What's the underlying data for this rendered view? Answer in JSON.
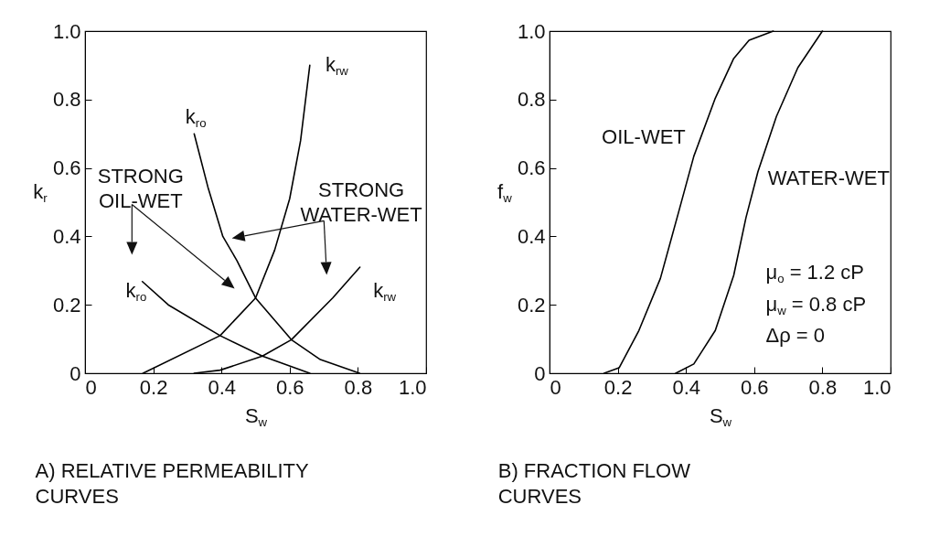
{
  "chart_data": [
    {
      "type": "line",
      "title": "A) RELATIVE PERMEABILITY CURVES",
      "xlabel": "S$_{w}$",
      "ylabel": "k$_{r}$",
      "xlim": [
        0,
        1
      ],
      "ylim": [
        0,
        1
      ],
      "xticks": [
        0,
        0.2,
        0.4,
        0.6,
        0.8,
        {
          "value": 1,
          "label": "1.0"
        }
      ],
      "yticks": [
        0,
        0.2,
        0.4,
        0.6,
        0.8,
        {
          "value": 1,
          "label": "1.0"
        }
      ],
      "grid": false,
      "legend": false,
      "marker": "none",
      "line_style": "solid",
      "annotations": [
        "STRONG OIL-WET",
        "STRONG WATER-WET"
      ],
      "series": [
        {
          "name": "k$_{rw}$",
          "color": "#000000",
          "x": [
            0.17,
            0.396,
            0.5,
            0.556,
            0.6,
            0.632,
            0.659
          ],
          "values": [
            0,
            0.11,
            0.22,
            0.36,
            0.51,
            0.68,
            0.9
          ]
        },
        {
          "name": "k$_{ro}$",
          "color": "#000000",
          "x": [
            0.32,
            0.36,
            0.404,
            0.445,
            0.5,
            0.605,
            0.69,
            0.805
          ],
          "values": [
            0.7,
            0.545,
            0.4,
            0.33,
            0.22,
            0.098,
            0.04,
            0
          ]
        },
        {
          "name": "k$_{rw}$",
          "color": "#000000",
          "x": [
            0.32,
            0.396,
            0.52,
            0.605,
            0.726,
            0.806
          ],
          "values": [
            0,
            0.009,
            0.05,
            0.098,
            0.22,
            0.31
          ]
        },
        {
          "name": "k$_{ro}$",
          "color": "#000000",
          "x": [
            0.168,
            0.244,
            0.396,
            0.52,
            0.659
          ],
          "values": [
            0.268,
            0.2,
            0.11,
            0.05,
            0
          ]
        }
      ]
    },
    {
      "type": "line",
      "title": "B) FRACTION  FLOW CURVES",
      "xlabel": "S$_{w}$",
      "ylabel": "f$_{w}$",
      "xlim": [
        0,
        1
      ],
      "ylim": [
        0,
        1
      ],
      "xticks": [
        0,
        0.2,
        0.4,
        0.6,
        0.8,
        {
          "value": 1,
          "label": "1.0"
        }
      ],
      "yticks": [
        0,
        0.2,
        0.4,
        0.6,
        0.8,
        {
          "value": 1,
          "label": "1.0"
        }
      ],
      "grid": false,
      "legend": false,
      "marker": "none",
      "line_style": "solid",
      "annotations": [
        "μ$_{o}$ = 1.2 cP",
        "μ$_{w}$ = 0.8 cP",
        "Δρ = 0"
      ],
      "series": [
        {
          "name": "OIL-WET",
          "color": "#000000",
          "x": [
            0.16,
            0.204,
            0.262,
            0.325,
            0.379,
            0.423,
            0.486,
            0.54,
            0.585,
            0.656
          ],
          "values": [
            0,
            0.016,
            0.125,
            0.277,
            0.473,
            0.634,
            0.804,
            0.92,
            0.973,
            1
          ]
        },
        {
          "name": "WATER-WET",
          "color": "#000000",
          "x": [
            0.37,
            0.423,
            0.486,
            0.54,
            0.576,
            0.611,
            0.665,
            0.728,
            0.8
          ],
          "values": [
            0,
            0.027,
            0.125,
            0.286,
            0.455,
            0.589,
            0.75,
            0.893,
            1
          ]
        }
      ]
    }
  ]
}
